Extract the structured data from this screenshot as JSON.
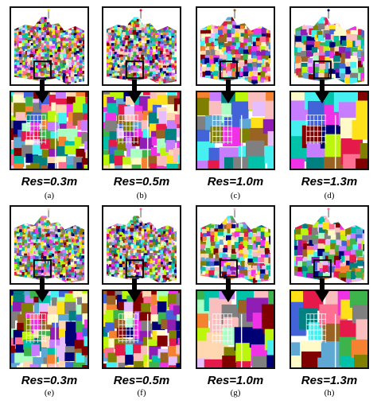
{
  "figure": {
    "panels": [
      {
        "id": "a",
        "res_label": "Res=0.3m",
        "caption": "(a)",
        "cell_density": "fine"
      },
      {
        "id": "b",
        "res_label": "Res=0.5m",
        "caption": "(b)",
        "cell_density": "fine"
      },
      {
        "id": "c",
        "res_label": "Res=1.0m",
        "caption": "(c)",
        "cell_density": "medium"
      },
      {
        "id": "d",
        "res_label": "Res=1.3m",
        "caption": "(d)",
        "cell_density": "coarse"
      },
      {
        "id": "e",
        "res_label": "Res=0.3m",
        "caption": "(e)",
        "cell_density": "fine"
      },
      {
        "id": "f",
        "res_label": "Res=0.5m",
        "caption": "(f)",
        "cell_density": "fine"
      },
      {
        "id": "g",
        "res_label": "Res=1.0m",
        "caption": "(g)",
        "cell_density": "medium"
      },
      {
        "id": "h",
        "res_label": "Res=1.3m",
        "caption": "(h)",
        "cell_density": "coarse"
      }
    ],
    "palette": [
      "#e6194b",
      "#3cb44b",
      "#ffe119",
      "#4363d8",
      "#f58231",
      "#911eb4",
      "#46f0f0",
      "#f032e6",
      "#bcf60c",
      "#fabebe",
      "#008080",
      "#e6beff",
      "#9a6324",
      "#fffac8",
      "#800000",
      "#aaffc3",
      "#808000",
      "#ffd8b1",
      "#000075",
      "#808080",
      "#ff6f91",
      "#00c2a8",
      "#c77dff",
      "#5fa8d3"
    ]
  }
}
